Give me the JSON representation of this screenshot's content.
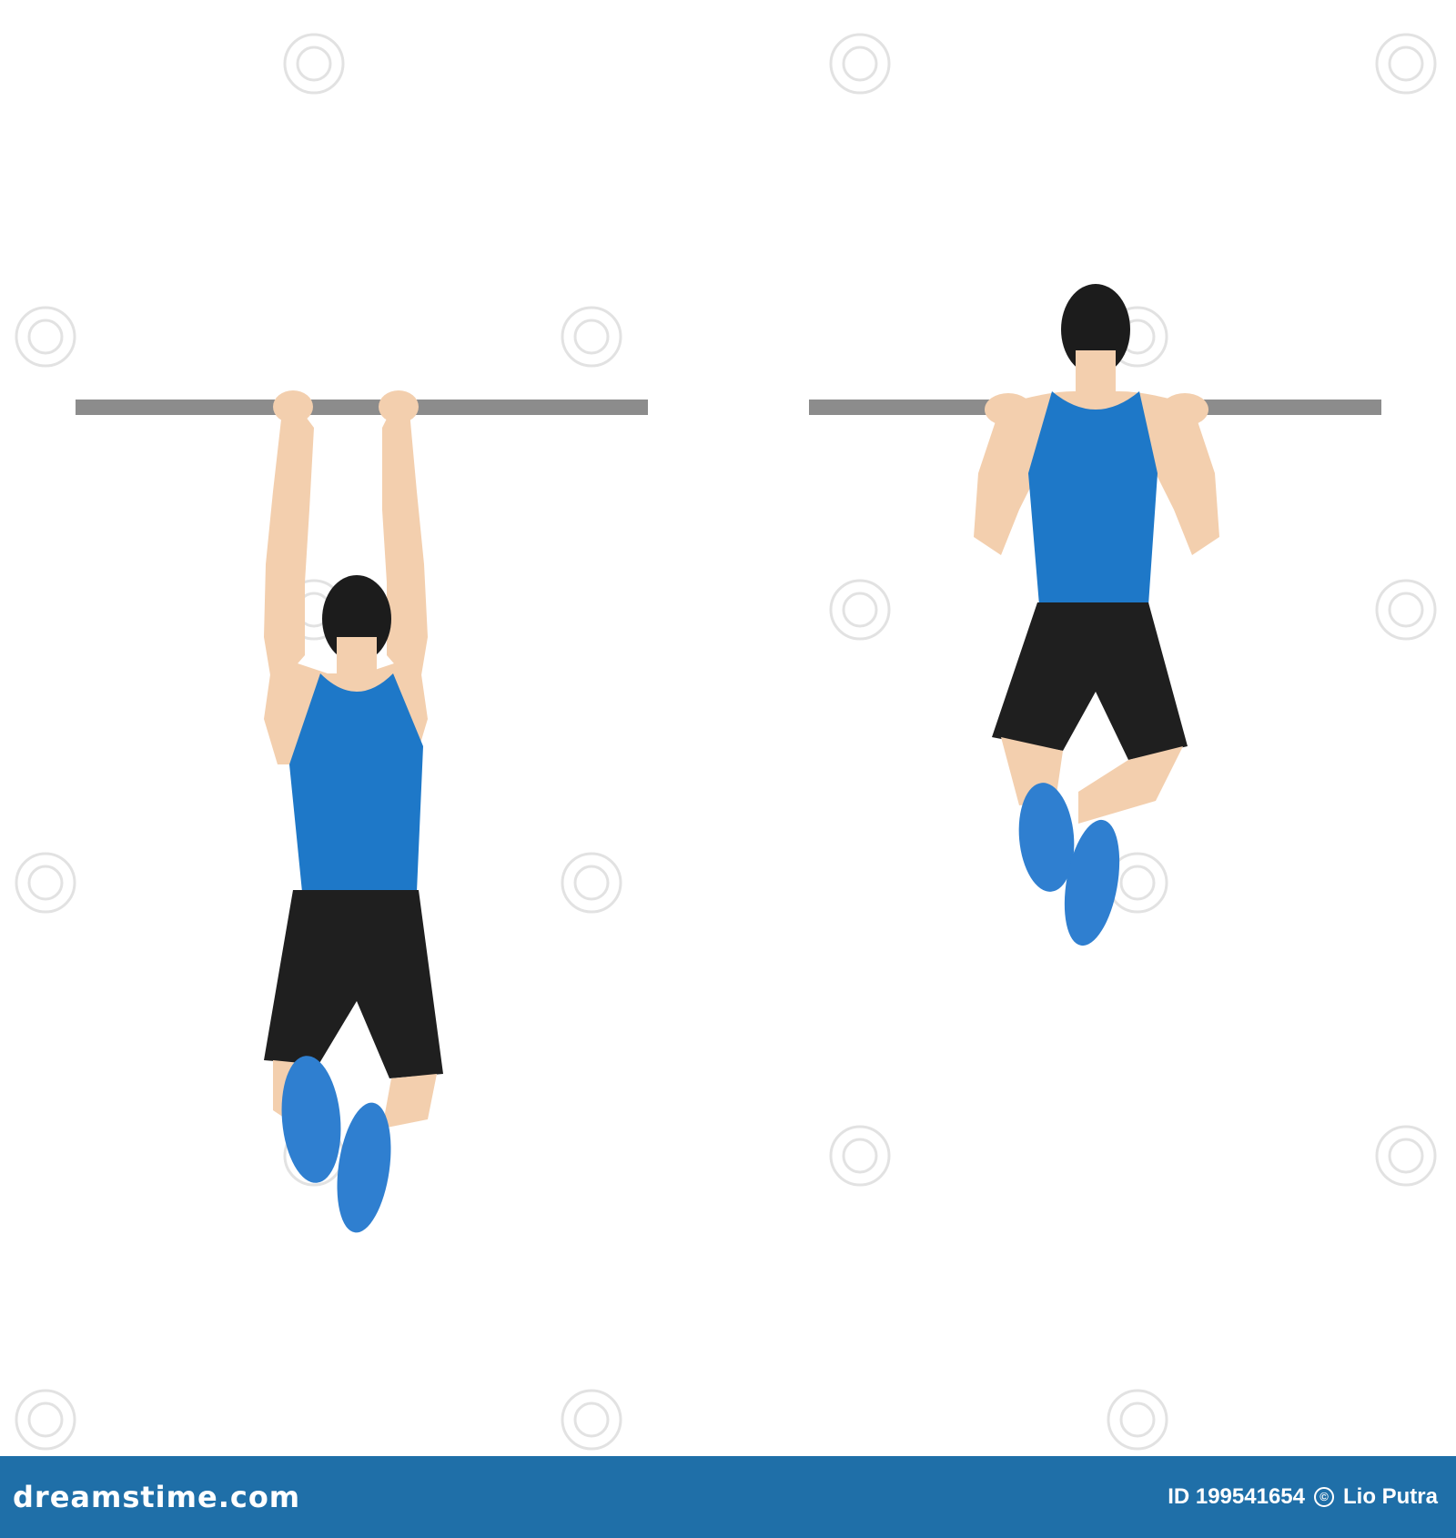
{
  "watermark": {
    "brand_text": "dreamstime.com",
    "image_id": "ID 199541654",
    "author": "Lio Putra",
    "copyright_symbol": "©"
  },
  "colors": {
    "background": "#ffffff",
    "bar": "#8c8c8c",
    "shirt": "#1e78c8",
    "shorts": "#1f1f1f",
    "skin": "#f3cfae",
    "hair": "#1c1c1c",
    "shoes": "#2f7fd0",
    "footer": "#1f6fa8",
    "watermark_glyph": "#d8d8d8"
  },
  "figures": [
    {
      "pose": "dead-hang"
    },
    {
      "pose": "chin-up-top"
    }
  ]
}
